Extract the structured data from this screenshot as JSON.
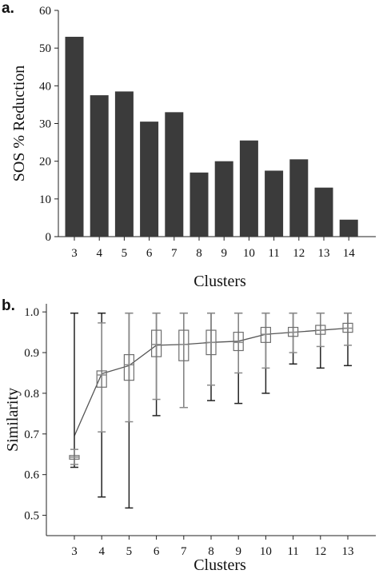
{
  "figure": {
    "panel_a_label": "a.",
    "panel_b_label": "b."
  },
  "chart_data": [
    {
      "type": "bar",
      "panel": "a.",
      "title": "",
      "xlabel": "Clusters",
      "ylabel": "SOS % Reduction",
      "categories": [
        "3",
        "4",
        "5",
        "6",
        "7",
        "8",
        "9",
        "10",
        "11",
        "12",
        "13",
        "14"
      ],
      "values": [
        53,
        37.5,
        38.5,
        30.5,
        33,
        17,
        20,
        25.5,
        17.5,
        20.5,
        13,
        4.5
      ],
      "ylim": [
        0,
        60
      ],
      "yticks": [
        0,
        10,
        20,
        30,
        40,
        50,
        60
      ],
      "color": "#3b3b3b",
      "grid": false
    },
    {
      "type": "box",
      "panel": "b.",
      "title": "",
      "xlabel": "Clusters",
      "ylabel": "Similarity",
      "categories": [
        "3",
        "4",
        "5",
        "6",
        "7",
        "8",
        "9",
        "10",
        "11",
        "12",
        "13"
      ],
      "ylim": [
        0.45,
        1.02
      ],
      "yticks": [
        "0.5",
        "0.6",
        "0.7",
        "0.8",
        "0.9",
        "1.0"
      ],
      "boxes": [
        {
          "cluster": "3",
          "q1": 0.638,
          "q3": 0.647,
          "median": 0.643,
          "upper_inner": 0.662,
          "lower_inner": 0.625,
          "upper_outer": 0.997,
          "lower_outer": 0.618
        },
        {
          "cluster": "4",
          "q1": 0.815,
          "q3": 0.855,
          "median": 0.845,
          "upper_inner": 0.973,
          "lower_inner": 0.705,
          "upper_outer": 0.997,
          "lower_outer": 0.545
        },
        {
          "cluster": "5",
          "q1": 0.832,
          "q3": 0.895,
          "median": 0.87,
          "upper_inner": 0.997,
          "lower_inner": 0.73,
          "upper_outer": 0.997,
          "lower_outer": 0.518
        },
        {
          "cluster": "6",
          "q1": 0.89,
          "q3": 0.955,
          "median": 0.92,
          "upper_inner": 0.997,
          "lower_inner": 0.785,
          "upper_outer": 0.997,
          "lower_outer": 0.745
        },
        {
          "cluster": "7",
          "q1": 0.88,
          "q3": 0.955,
          "median": 0.92,
          "upper_inner": 0.997,
          "lower_inner": 0.765,
          "upper_outer": 0.997,
          "lower_outer": 0.765
        },
        {
          "cluster": "8",
          "q1": 0.895,
          "q3": 0.955,
          "median": 0.925,
          "upper_inner": 0.997,
          "lower_inner": 0.82,
          "upper_outer": 0.997,
          "lower_outer": 0.782
        },
        {
          "cluster": "9",
          "q1": 0.905,
          "q3": 0.95,
          "median": 0.925,
          "upper_inner": 0.997,
          "lower_inner": 0.85,
          "upper_outer": 0.997,
          "lower_outer": 0.775
        },
        {
          "cluster": "10",
          "q1": 0.925,
          "q3": 0.962,
          "median": 0.945,
          "upper_inner": 0.997,
          "lower_inner": 0.862,
          "upper_outer": 0.997,
          "lower_outer": 0.8
        },
        {
          "cluster": "11",
          "q1": 0.94,
          "q3": 0.962,
          "median": 0.95,
          "upper_inner": 0.997,
          "lower_inner": 0.9,
          "upper_outer": 0.997,
          "lower_outer": 0.872
        },
        {
          "cluster": "12",
          "q1": 0.945,
          "q3": 0.967,
          "median": 0.955,
          "upper_inner": 0.997,
          "lower_inner": 0.915,
          "upper_outer": 0.997,
          "lower_outer": 0.862
        },
        {
          "cluster": "13",
          "q1": 0.95,
          "q3": 0.972,
          "median": 0.96,
          "upper_inner": 0.997,
          "lower_inner": 0.918,
          "upper_outer": 0.997,
          "lower_outer": 0.868
        }
      ],
      "mean_line": [
        0.695,
        0.848,
        0.868,
        0.918,
        0.92,
        0.925,
        0.928,
        0.945,
        0.95,
        0.955,
        0.96
      ],
      "grid": false
    }
  ]
}
